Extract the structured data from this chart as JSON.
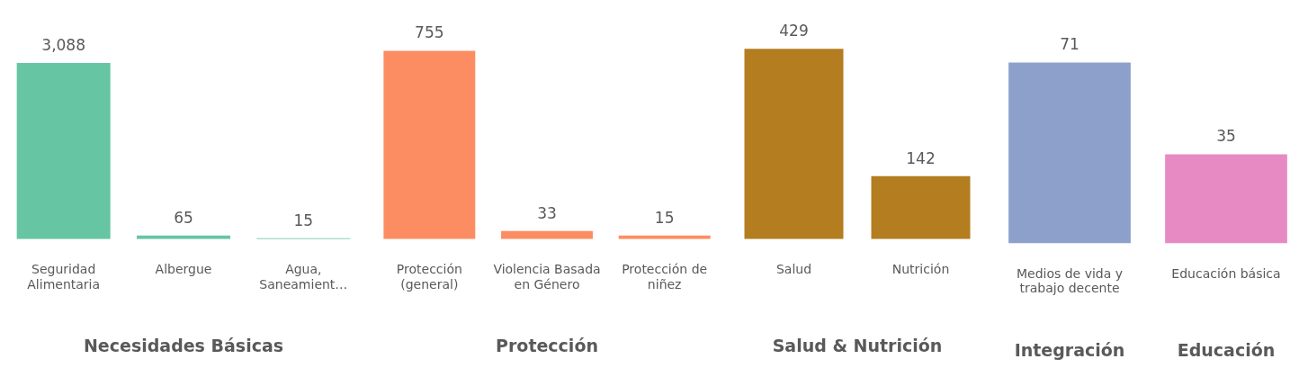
{
  "chart_data": [
    {
      "type": "bar",
      "xlabel": "Necesidades Básicas",
      "categories": [
        "Seguridad Alimentaria",
        "Albergue",
        "Agua, Saneamient…"
      ],
      "values": [
        3088,
        65,
        15
      ],
      "color": "#66c5a3",
      "data_labels": true,
      "value_labels": [
        "3,088",
        "65",
        "15"
      ]
    },
    {
      "type": "bar",
      "xlabel": "Protección",
      "categories": [
        "Protección (general)",
        "Violencia Basada en Género",
        "Protección de niñez"
      ],
      "values": [
        755,
        33,
        15
      ],
      "color": "#fc8d62",
      "data_labels": true
    },
    {
      "type": "bar",
      "xlabel": "Salud & Nutrición",
      "categories": [
        "Salud",
        "Nutrición"
      ],
      "values": [
        429,
        142
      ],
      "color": "#b37d20",
      "data_labels": true
    },
    {
      "type": "bar",
      "annotations": [
        "Integración",
        "Educación"
      ],
      "categories": [
        "Medios de vida y trabajo decente",
        "Educación básica"
      ],
      "values": [
        71,
        35
      ],
      "colors": [
        "#8da0cb",
        "#e78ac3"
      ],
      "data_labels": true
    }
  ]
}
